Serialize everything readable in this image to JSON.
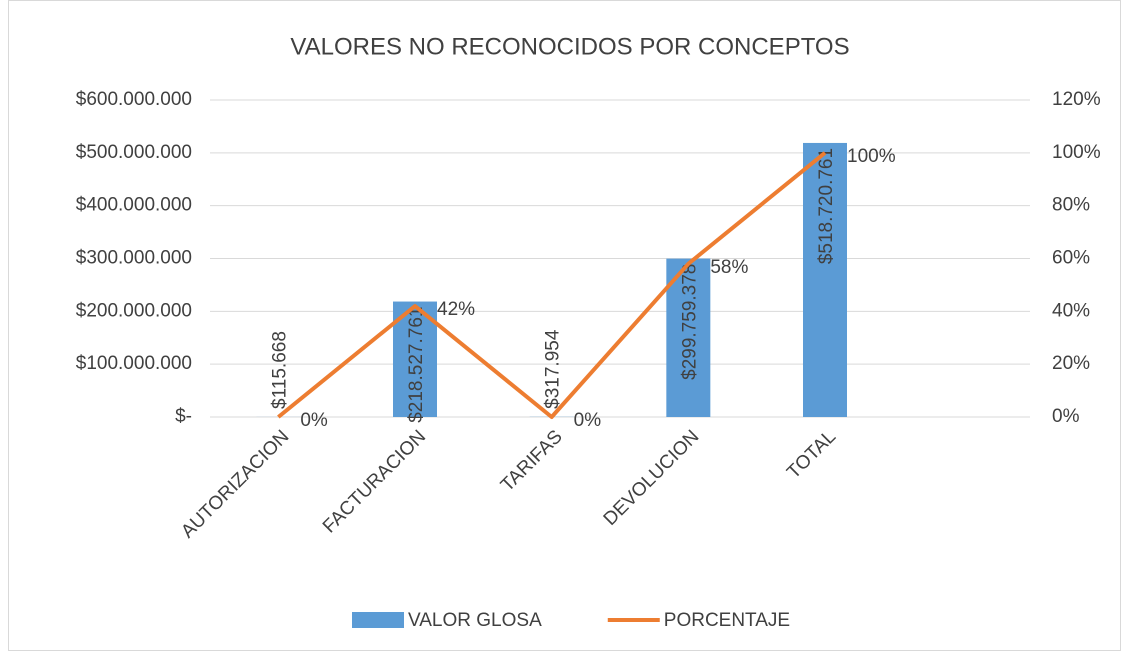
{
  "chart_data": {
    "type": "bar-line",
    "title": "VALORES NO RECONOCIDOS POR CONCEPTOS",
    "categories": [
      "AUTORIZACION",
      "FACTURACION",
      "TARIFAS",
      "DEVOLUCION",
      "TOTAL",
      null
    ],
    "series": [
      {
        "name": "VALOR GLOSA",
        "type": "bar",
        "color": "#5b9bd5",
        "values": [
          115668,
          218527761,
          317954,
          299759378,
          518720761,
          null
        ],
        "value_labels": [
          "$115.668",
          "$218.527.761",
          "$317.954",
          "$299.759.378",
          "$518.720.761",
          null
        ]
      },
      {
        "name": "PORCENTAJE",
        "type": "line",
        "axis": "y2",
        "color": "#ed7d31",
        "values": [
          0,
          42,
          0,
          58,
          100,
          null
        ],
        "value_labels": [
          "0%",
          "42%",
          "0%",
          "58%",
          "100%",
          null
        ]
      }
    ],
    "ylim": [
      0,
      600000000
    ],
    "yticks": [
      {
        "value": 0,
        "label": "$-"
      },
      {
        "value": 100000000,
        "label": "$100.000.000"
      },
      {
        "value": 200000000,
        "label": "$200.000.000"
      },
      {
        "value": 300000000,
        "label": "$300.000.000"
      },
      {
        "value": 400000000,
        "label": "$400.000.000"
      },
      {
        "value": 500000000,
        "label": "$500.000.000"
      },
      {
        "value": 600000000,
        "label": "$600.000.000"
      }
    ],
    "y2lim": [
      0,
      120
    ],
    "y2ticks": [
      {
        "value": 0,
        "label": "0%"
      },
      {
        "value": 20,
        "label": "20%"
      },
      {
        "value": 40,
        "label": "40%"
      },
      {
        "value": 60,
        "label": "60%"
      },
      {
        "value": 80,
        "label": "80%"
      },
      {
        "value": 100,
        "label": "100%"
      },
      {
        "value": 120,
        "label": "120%"
      }
    ],
    "grid": true,
    "legend": "bottom"
  }
}
